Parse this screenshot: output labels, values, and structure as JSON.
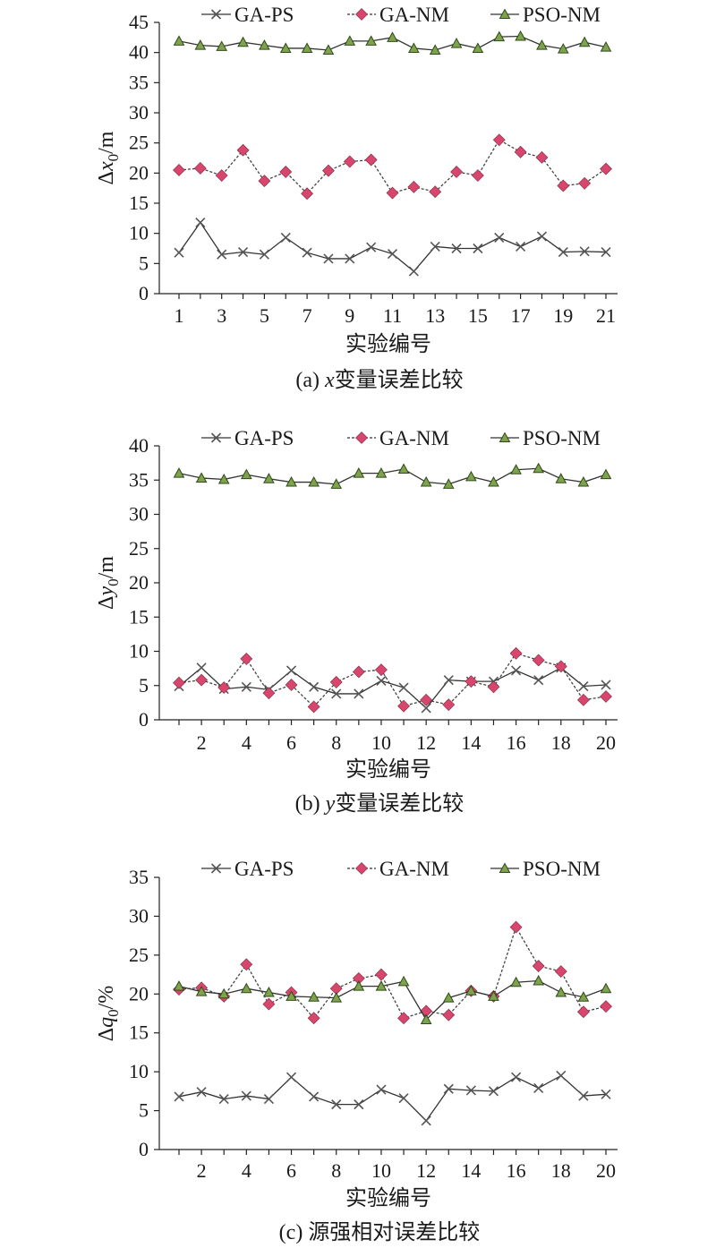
{
  "chart_data": [
    {
      "type": "line",
      "caption": "(a) x变量误差比较",
      "caption_prefix": "(a) ",
      "caption_var": "x",
      "caption_rest": "变量误差比较",
      "ylabel_delta": "Δ",
      "ylabel_var": "x",
      "ylabel_sub": "0",
      "ylabel_unit": "/m",
      "xlabel": "实验编号",
      "ylim": [
        0,
        45
      ],
      "yticks": [
        0,
        5,
        10,
        15,
        20,
        25,
        30,
        35,
        40,
        45
      ],
      "x": [
        1,
        2,
        3,
        4,
        5,
        6,
        7,
        8,
        9,
        10,
        11,
        12,
        13,
        14,
        15,
        16,
        17,
        18,
        19,
        20,
        21
      ],
      "xticks": [
        1,
        3,
        5,
        7,
        9,
        11,
        13,
        15,
        17,
        19,
        21
      ],
      "legend_position": "top",
      "series": [
        {
          "name": "GA-PS",
          "marker": "x",
          "color": "#555555",
          "values": [
            6.8,
            11.8,
            6.5,
            6.9,
            6.5,
            9.3,
            6.8,
            5.8,
            5.8,
            7.7,
            6.6,
            3.7,
            7.8,
            7.5,
            7.5,
            9.3,
            7.8,
            9.5,
            6.9,
            7.0,
            6.9
          ]
        },
        {
          "name": "GA-NM",
          "marker": "diamond",
          "color": "#d9466d",
          "values": [
            20.5,
            20.8,
            19.6,
            23.8,
            18.7,
            20.2,
            16.6,
            20.4,
            21.9,
            22.2,
            16.7,
            17.7,
            16.9,
            20.2,
            19.6,
            25.5,
            23.5,
            22.6,
            17.9,
            18.3,
            20.7
          ]
        },
        {
          "name": "PSO-NM",
          "marker": "triangle",
          "color": "#7fa34c",
          "values": [
            41.9,
            41.2,
            41.0,
            41.7,
            41.2,
            40.7,
            40.7,
            40.4,
            41.9,
            41.9,
            42.5,
            40.7,
            40.4,
            41.5,
            40.7,
            42.6,
            42.7,
            41.2,
            40.6,
            41.7,
            40.9
          ]
        }
      ]
    },
    {
      "type": "line",
      "caption": "(b) y变量误差比较",
      "caption_prefix": "(b) ",
      "caption_var": "y",
      "caption_rest": "变量误差比较",
      "ylabel_delta": "Δ",
      "ylabel_var": "y",
      "ylabel_sub": "0",
      "ylabel_unit": "/m",
      "xlabel": "实验编号",
      "ylim": [
        0,
        40
      ],
      "yticks": [
        0,
        5,
        10,
        15,
        20,
        25,
        30,
        35,
        40
      ],
      "x": [
        1,
        2,
        3,
        4,
        5,
        6,
        7,
        8,
        9,
        10,
        11,
        12,
        13,
        14,
        15,
        16,
        17,
        18,
        19,
        20
      ],
      "xticks": [
        2,
        4,
        6,
        8,
        10,
        12,
        14,
        16,
        18,
        20
      ],
      "legend_position": "top",
      "series": [
        {
          "name": "GA-PS",
          "marker": "x",
          "color": "#555555",
          "values": [
            4.9,
            7.6,
            4.5,
            4.8,
            4.4,
            7.2,
            4.8,
            3.8,
            3.8,
            5.7,
            4.7,
            1.7,
            5.8,
            5.6,
            5.6,
            7.2,
            5.8,
            7.6,
            4.9,
            5.1
          ]
        },
        {
          "name": "GA-NM",
          "marker": "diamond",
          "color": "#d9466d",
          "values": [
            5.4,
            5.8,
            4.7,
            8.9,
            3.9,
            5.1,
            1.9,
            5.5,
            7.0,
            7.3,
            2.0,
            2.9,
            2.2,
            5.6,
            4.8,
            9.7,
            8.7,
            7.8,
            2.9,
            3.4
          ]
        },
        {
          "name": "PSO-NM",
          "marker": "triangle",
          "color": "#7fa34c",
          "values": [
            36.0,
            35.3,
            35.1,
            35.8,
            35.2,
            34.7,
            34.7,
            34.4,
            36.0,
            36.0,
            36.6,
            34.7,
            34.4,
            35.5,
            34.7,
            36.5,
            36.7,
            35.2,
            34.7,
            35.8
          ]
        }
      ]
    },
    {
      "type": "line",
      "caption": "(c) 源强相对误差比较",
      "caption_prefix": "(c) ",
      "caption_var": "",
      "caption_rest": "源强相对误差比较",
      "ylabel_delta": "Δ",
      "ylabel_var": "q",
      "ylabel_sub": "0",
      "ylabel_unit": "/%",
      "xlabel": "实验编号",
      "ylim": [
        0,
        35
      ],
      "yticks": [
        0,
        5,
        10,
        15,
        20,
        25,
        30,
        35
      ],
      "x": [
        1,
        2,
        3,
        4,
        5,
        6,
        7,
        8,
        9,
        10,
        11,
        12,
        13,
        14,
        15,
        16,
        17,
        18,
        19,
        20
      ],
      "xticks": [
        2,
        4,
        6,
        8,
        10,
        12,
        14,
        16,
        18,
        20
      ],
      "legend_position": "top",
      "series": [
        {
          "name": "GA-PS",
          "marker": "x",
          "color": "#555555",
          "values": [
            6.8,
            7.4,
            6.5,
            6.9,
            6.5,
            9.3,
            6.8,
            5.8,
            5.8,
            7.7,
            6.6,
            3.7,
            7.8,
            7.6,
            7.5,
            9.3,
            7.9,
            9.5,
            6.9,
            7.1
          ]
        },
        {
          "name": "GA-NM",
          "marker": "diamond",
          "color": "#d9466d",
          "values": [
            20.6,
            20.8,
            19.7,
            23.8,
            18.7,
            20.2,
            16.9,
            20.7,
            22.0,
            22.5,
            16.9,
            17.8,
            17.3,
            20.4,
            19.7,
            28.6,
            23.6,
            22.9,
            17.7,
            18.4
          ]
        },
        {
          "name": "PSO-NM",
          "marker": "triangle",
          "color": "#7fa34c",
          "values": [
            21.0,
            20.3,
            20.0,
            20.7,
            20.2,
            19.7,
            19.6,
            19.5,
            21.0,
            21.0,
            21.6,
            16.7,
            19.5,
            20.4,
            19.7,
            21.5,
            21.7,
            20.2,
            19.6,
            20.7
          ]
        }
      ]
    }
  ]
}
